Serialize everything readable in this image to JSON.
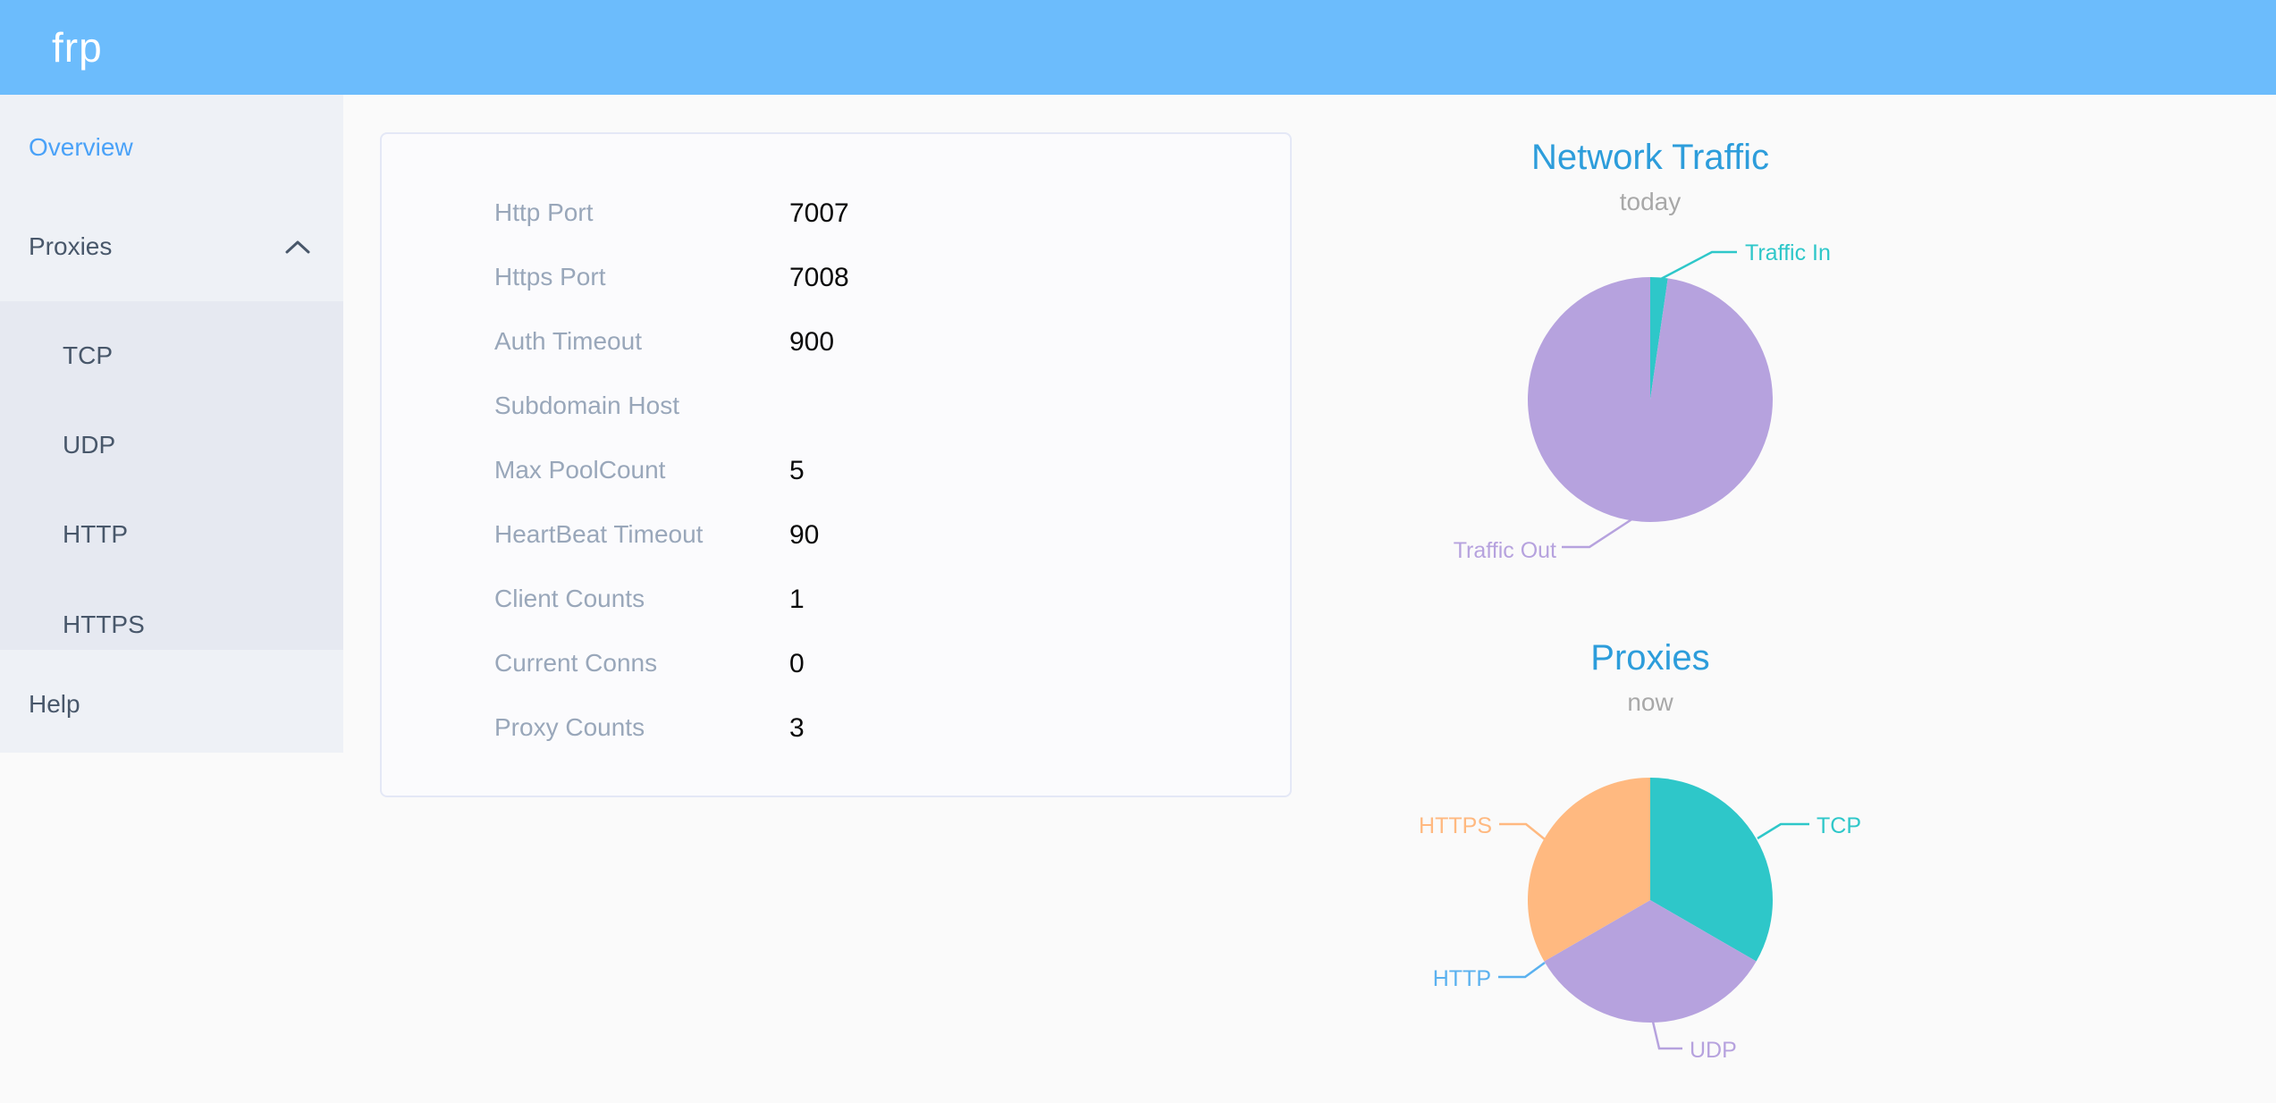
{
  "app": {
    "logo": "frp"
  },
  "sidebar": {
    "items": [
      {
        "label": "Overview",
        "active": true
      },
      {
        "label": "Proxies",
        "expanded": true
      },
      {
        "label": "TCP"
      },
      {
        "label": "UDP"
      },
      {
        "label": "HTTP"
      },
      {
        "label": "HTTPS"
      },
      {
        "label": "Help"
      }
    ]
  },
  "overview_card": {
    "rows": [
      {
        "label": "Http Port",
        "value": "7007"
      },
      {
        "label": "Https Port",
        "value": "7008"
      },
      {
        "label": "Auth Timeout",
        "value": "900"
      },
      {
        "label": "Subdomain Host",
        "value": ""
      },
      {
        "label": "Max PoolCount",
        "value": "5"
      },
      {
        "label": "HeartBeat Timeout",
        "value": "90"
      },
      {
        "label": "Client Counts",
        "value": "1"
      },
      {
        "label": "Current Conns",
        "value": "0"
      },
      {
        "label": "Proxy Counts",
        "value": "3"
      }
    ]
  },
  "chart_data": [
    {
      "type": "pie",
      "title": "Network Traffic",
      "subtitle": "today",
      "legend_position": "none",
      "labels": "outside-with-leader-lines",
      "slices": [
        {
          "label": "Traffic In",
          "value": 2.3,
          "unit": "percent-estimated",
          "color": "#2ec7c9"
        },
        {
          "label": "Traffic Out",
          "value": 97.7,
          "unit": "percent-estimated",
          "color": "#b6a2de"
        }
      ]
    },
    {
      "type": "pie",
      "title": "Proxies",
      "subtitle": "now",
      "legend_position": "none",
      "labels": "outside-with-leader-lines",
      "slices": [
        {
          "label": "TCP",
          "value": 1,
          "color": "#2ec7c9"
        },
        {
          "label": "UDP",
          "value": 1,
          "color": "#b6a2de"
        },
        {
          "label": "HTTP",
          "value": 0,
          "color": "#5ab1ef"
        },
        {
          "label": "HTTPS",
          "value": 1,
          "color": "#ffb980"
        }
      ]
    }
  ],
  "colors": {
    "header": "#6cbcfc",
    "page_bg": "#fafafa",
    "sidebar_bg": "#eef1f6",
    "submenu_bg": "#e6e9f1",
    "active_item": "#4aa2f8",
    "chart_title": "#2d9ddb"
  }
}
